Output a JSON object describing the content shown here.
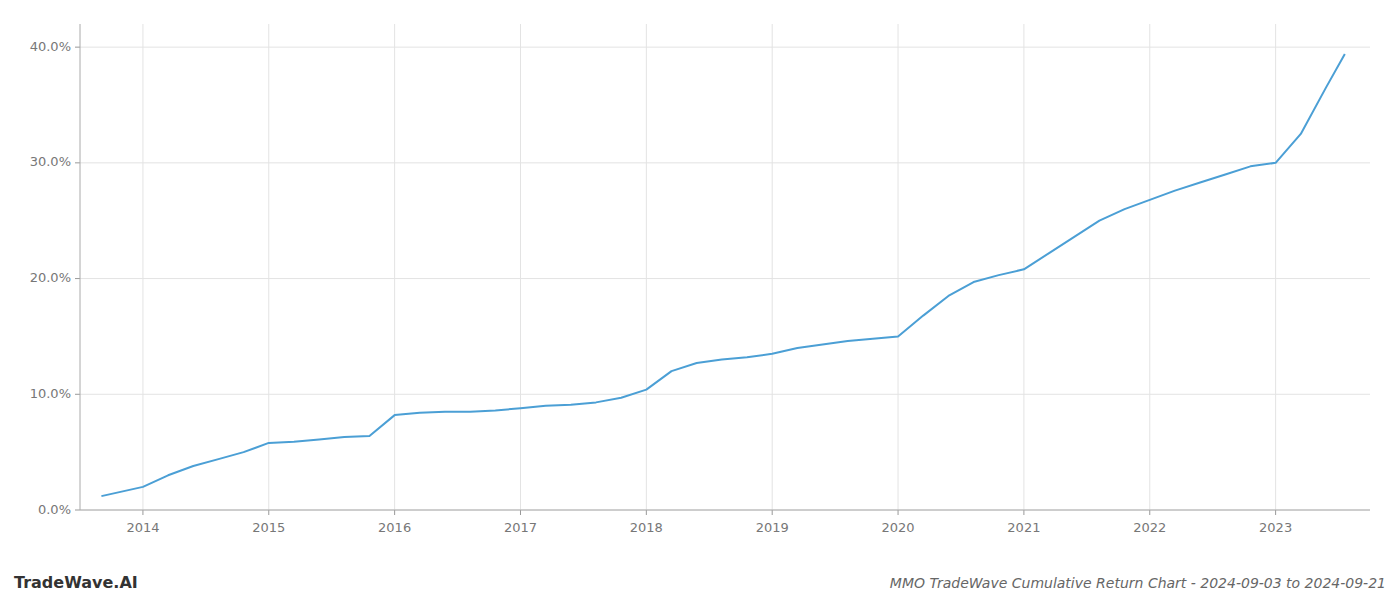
{
  "chart_data": {
    "type": "line",
    "title": "MMO TradeWave Cumulative Return Chart - 2024-09-03 to 2024-09-21",
    "annotations": [
      "TradeWave.AI"
    ],
    "x": [
      2013.67,
      2014.0,
      2014.2,
      2014.4,
      2014.6,
      2014.8,
      2015.0,
      2015.2,
      2015.4,
      2015.6,
      2015.8,
      2016.0,
      2016.2,
      2016.4,
      2016.6,
      2016.8,
      2017.0,
      2017.2,
      2017.4,
      2017.6,
      2017.8,
      2018.0,
      2018.2,
      2018.4,
      2018.6,
      2018.8,
      2019.0,
      2019.2,
      2019.4,
      2019.6,
      2019.8,
      2020.0,
      2020.2,
      2020.4,
      2020.6,
      2020.8,
      2021.0,
      2021.2,
      2021.4,
      2021.6,
      2021.8,
      2022.0,
      2022.2,
      2022.4,
      2022.6,
      2022.8,
      2023.0,
      2023.2,
      2023.4,
      2023.55
    ],
    "values": [
      0.012,
      0.02,
      0.03,
      0.038,
      0.044,
      0.05,
      0.058,
      0.059,
      0.061,
      0.063,
      0.064,
      0.082,
      0.084,
      0.085,
      0.085,
      0.086,
      0.088,
      0.09,
      0.091,
      0.093,
      0.097,
      0.104,
      0.12,
      0.127,
      0.13,
      0.132,
      0.135,
      0.14,
      0.143,
      0.146,
      0.148,
      0.15,
      0.168,
      0.185,
      0.197,
      0.203,
      0.208,
      0.222,
      0.236,
      0.25,
      0.26,
      0.268,
      0.276,
      0.283,
      0.29,
      0.297,
      0.3,
      0.325,
      0.365,
      0.394
    ],
    "color": "#4b9fd5",
    "xlim": [
      2013.5,
      2023.75
    ],
    "xticks": [
      2014,
      2015,
      2016,
      2017,
      2018,
      2019,
      2020,
      2021,
      2022,
      2023
    ],
    "ylim": [
      0.0,
      0.42
    ],
    "yticks": [
      {
        "value": 0.0,
        "label": "0.0%"
      },
      {
        "value": 0.1,
        "label": "10.0%"
      },
      {
        "value": 0.2,
        "label": "20.0%"
      },
      {
        "value": 0.3,
        "label": "30.0%"
      },
      {
        "value": 0.4,
        "label": "40.0%"
      }
    ],
    "grid": true
  }
}
